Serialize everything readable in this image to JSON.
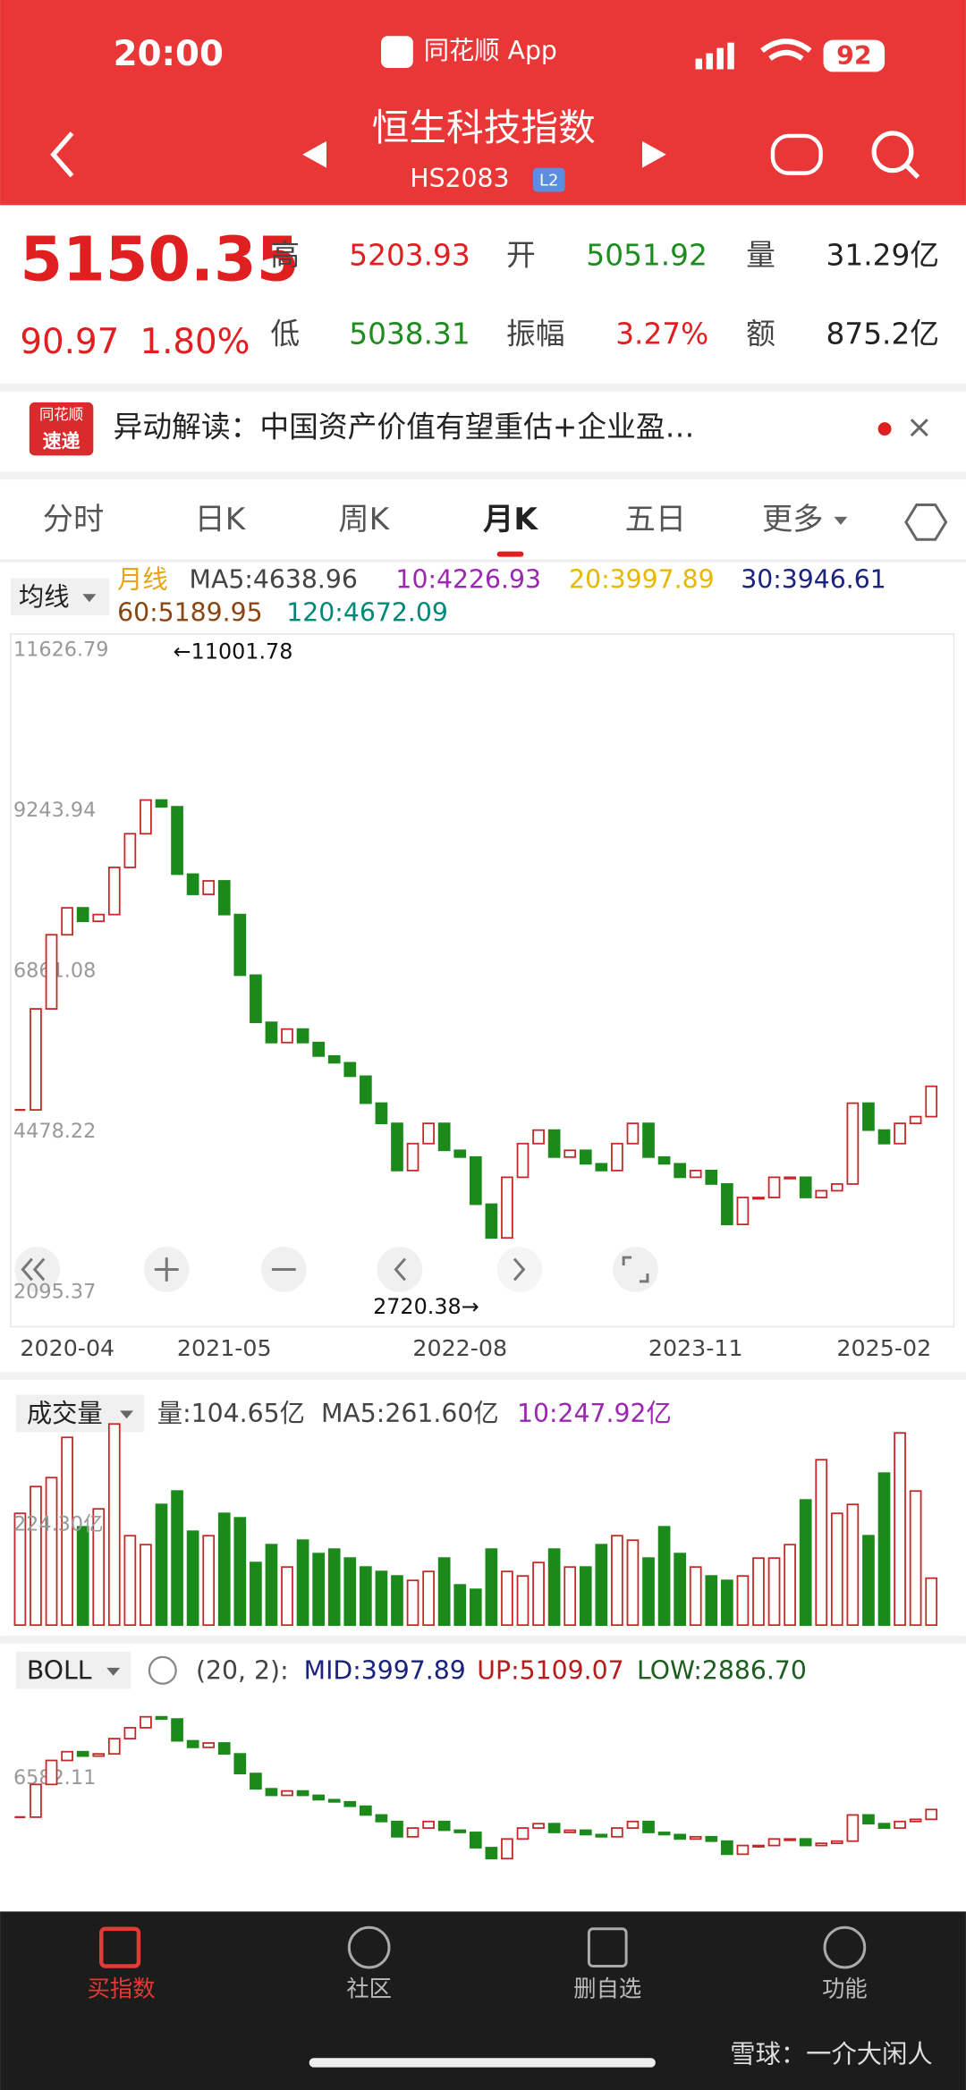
{
  "status_bar": {
    "time": "20:00",
    "app": "同花顺 App",
    "battery": "92"
  },
  "header": {
    "title": "恒生科技指数",
    "code": "HS2083",
    "badge": "L2"
  },
  "quote": {
    "price": "5150.35",
    "change": "90.97",
    "change_pct": "1.80%",
    "fields": [
      {
        "label": "高",
        "value": "5203.93"
      },
      {
        "label": "开",
        "value": "5051.92"
      },
      {
        "label": "量",
        "value": "31.29亿"
      },
      {
        "label": "低",
        "value": "5038.31"
      },
      {
        "label": "振幅",
        "value": "3.27%"
      },
      {
        "label": "额",
        "value": "875.2亿"
      }
    ]
  },
  "news": {
    "badge_top": "同花顺",
    "badge_bottom": "速递",
    "text": "异动解读：中国资产价值有望重估+企业盈…"
  },
  "tabs": [
    "分时",
    "日K",
    "周K",
    "月K",
    "五日",
    "更多"
  ],
  "indicators": {
    "selector": "均线",
    "period": "月线",
    "ma": [
      "MA5:4638.96",
      "10:4226.93",
      "20:3997.89",
      "30:3946.61",
      "60:5189.95",
      "120:4672.09"
    ]
  },
  "chart_data": {
    "type": "candlestick",
    "categories": [
      "2020-04",
      null,
      null,
      null,
      null,
      null,
      null,
      null,
      null,
      null,
      null,
      null,
      null,
      "2021-05",
      null,
      null,
      null,
      null,
      null,
      null,
      null,
      null,
      null,
      null,
      null,
      null,
      null,
      null,
      "2022-08",
      null,
      null,
      null,
      null,
      null,
      null,
      null,
      null,
      null,
      null,
      null,
      null,
      null,
      null,
      "2023-11",
      null,
      null,
      null,
      null,
      null,
      null,
      null,
      null,
      null,
      null,
      null,
      null,
      null,
      null,
      "2025-02"
    ],
    "close": [
      4800,
      6300,
      7400,
      7800,
      7600,
      7700,
      8400,
      8900,
      9400,
      9300,
      8300,
      8000,
      8200,
      7700,
      6800,
      6100,
      5800,
      6000,
      5800,
      5600,
      5500,
      5300,
      4900,
      4600,
      3900,
      4300,
      4600,
      4200,
      4100,
      3400,
      2900,
      3800,
      4300,
      4500,
      4100,
      4200,
      4000,
      3900,
      4300,
      4600,
      4100,
      4000,
      3800,
      3900,
      3700,
      3100,
      3500,
      3500,
      3800,
      3800,
      3500,
      3600,
      3700,
      4900,
      4500,
      4300,
      4600,
      4700,
      5150.35
    ],
    "ylim": [
      2095.37,
      11626.79
    ],
    "yticks": [
      11626.79,
      9243.94,
      6861.08,
      4478.22,
      2095.37
    ],
    "annotations": [
      "←11001.78",
      "2720.38→"
    ]
  },
  "volume_chart": {
    "type": "bar",
    "selector": "成交量",
    "legend": [
      "量:104.65亿",
      "MA5:261.60亿",
      "10:247.92亿"
    ],
    "values": [
      250,
      310,
      330,
      420,
      220,
      260,
      450,
      200,
      180,
      270,
      300,
      210,
      200,
      250,
      240,
      140,
      180,
      130,
      190,
      160,
      170,
      150,
      130,
      120,
      110,
      100,
      120,
      150,
      90,
      80,
      170,
      120,
      110,
      140,
      170,
      130,
      130,
      180,
      200,
      190,
      150,
      220,
      160,
      130,
      110,
      100,
      110,
      150,
      150,
      180,
      280,
      370,
      250,
      270,
      200,
      340,
      430,
      300,
      105
    ],
    "ylim": [
      0,
      450
    ],
    "yticks": [
      {
        "value": 224.3,
        "label": "224.30亿"
      }
    ]
  },
  "boll_chart": {
    "type": "candlestick",
    "selector": "BOLL",
    "params": "(20, 2):",
    "legend": [
      "MID:3997.89",
      "UP:5109.07",
      "LOW:2886.70"
    ],
    "ylim": [
      2000,
      11040
    ],
    "yticks": [
      6582.11
    ]
  },
  "nav": [
    "买指数",
    "社区",
    "删自选",
    "功能"
  ],
  "watermark": "雪球：一介大闲人"
}
